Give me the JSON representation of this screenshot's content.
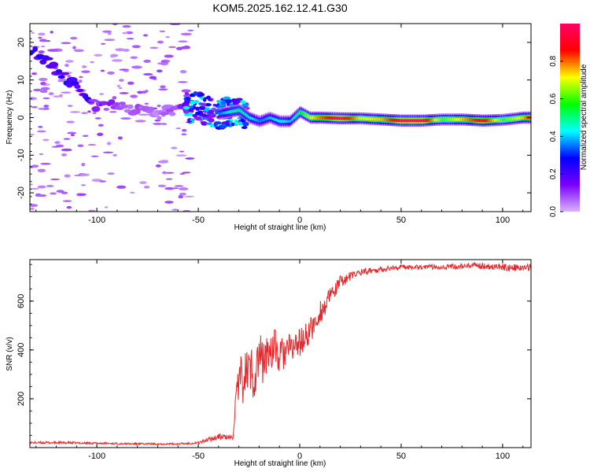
{
  "title": "KOM5.2025.162.12.41.G30",
  "chart_data": [
    {
      "type": "heatmap",
      "xlabel": "Height of straight line (km)",
      "ylabel": "Frequency (Hz)",
      "xlim": [
        -133,
        114
      ],
      "ylim": [
        -25,
        25
      ],
      "xticks": [
        -100,
        -50,
        0,
        50,
        100
      ],
      "yticks": [
        -20,
        -10,
        0,
        10,
        20
      ],
      "colorbar": {
        "label": "Normalized spectral amplitude",
        "range": [
          0,
          1
        ],
        "ticks": [
          "0.0",
          "0.2",
          "0.4",
          "0.6",
          "0.8"
        ],
        "colormap": [
          "#d9b3ff",
          "#7a00ff",
          "#0000ff",
          "#00ffff",
          "#00ff00",
          "#ffff00",
          "#ff0000",
          "#ff0066"
        ]
      },
      "ridge": {
        "x": [
          -133,
          -125,
          -117,
          -110,
          -104,
          -100,
          -90,
          -80,
          -70,
          -60,
          -52,
          -45,
          -40,
          -35,
          -30,
          -25,
          -20,
          -15,
          -10,
          -5,
          0,
          5,
          10,
          20,
          30,
          40,
          50,
          60,
          70,
          80,
          90,
          100,
          110,
          114
        ],
        "freq_hz": [
          18,
          15,
          11,
          8,
          5,
          3,
          3,
          2,
          1,
          2,
          3,
          2,
          1,
          1.5,
          2,
          0,
          -1,
          0,
          -1,
          -1,
          1.5,
          0,
          0,
          -0.2,
          -0.2,
          -0.5,
          -0.8,
          -0.8,
          -0.5,
          -0.5,
          -0.8,
          -0.6,
          0,
          0
        ],
        "amplitude": [
          0.2,
          0.25,
          0.25,
          0.25,
          0.2,
          0.15,
          0.1,
          0.08,
          0.06,
          0.08,
          0.3,
          0.3,
          0.35,
          0.45,
          0.5,
          0.45,
          0.35,
          0.4,
          0.45,
          0.4,
          0.55,
          0.7,
          0.8,
          0.95,
          0.7,
          0.75,
          0.95,
          0.95,
          0.6,
          0.75,
          0.9,
          0.6,
          0.75,
          0.9
        ]
      }
    },
    {
      "type": "line",
      "xlabel": "Height of straight line (km)",
      "ylabel": "SNR (v/v)",
      "xlim": [
        -133,
        114
      ],
      "ylim": [
        0,
        770
      ],
      "xticks": [
        -100,
        -50,
        0,
        50,
        100
      ],
      "yticks": [
        200,
        400,
        600
      ],
      "series": [
        {
          "color": "#e8262a",
          "x": [
            -133,
            -120,
            -100,
            -80,
            -60,
            -50,
            -40,
            -33,
            -32,
            -30,
            -28,
            -25,
            -22,
            -20,
            -18,
            -15,
            -12,
            -10,
            -8,
            -5,
            -2,
            0,
            2,
            5,
            8,
            10,
            12,
            15,
            18,
            20,
            25,
            30,
            35,
            40,
            45,
            50,
            60,
            70,
            80,
            90,
            100,
            110,
            114
          ],
          "values": [
            20,
            20,
            18,
            15,
            15,
            20,
            45,
            40,
            150,
            250,
            290,
            320,
            300,
            380,
            350,
            400,
            410,
            360,
            390,
            400,
            420,
            430,
            440,
            480,
            510,
            560,
            570,
            620,
            650,
            680,
            700,
            720,
            725,
            730,
            735,
            740,
            740,
            740,
            742,
            745,
            738,
            735,
            740
          ],
          "noise": [
            5,
            5,
            4,
            4,
            4,
            6,
            12,
            10,
            60,
            100,
            110,
            110,
            110,
            100,
            90,
            90,
            80,
            80,
            75,
            70,
            65,
            60,
            60,
            55,
            50,
            50,
            45,
            35,
            30,
            25,
            20,
            15,
            12,
            12,
            10,
            10,
            10,
            10,
            12,
            14,
            14,
            14,
            14
          ]
        }
      ]
    }
  ],
  "colors": {
    "axis": "#000000",
    "snr_line": "#e8262a"
  }
}
